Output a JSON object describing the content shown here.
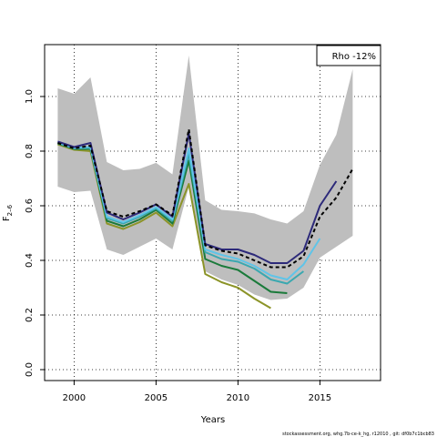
{
  "chart_data": {
    "type": "line",
    "xlabel": "Years",
    "ylabel": "F",
    "ylabel_sub": "2–6",
    "xlim": [
      1998.2,
      2018.7
    ],
    "ylim": [
      -0.04,
      1.19
    ],
    "x_ticks": [
      2000,
      2005,
      2010,
      2015
    ],
    "y_ticks": [
      0.0,
      0.2,
      0.4,
      0.6,
      0.8,
      1.0
    ],
    "x_tick_labels": [
      "2000",
      "2005",
      "2010",
      "2015"
    ],
    "y_tick_labels": [
      "0.0",
      "0.2",
      "0.4",
      "0.6",
      "0.8",
      "1.0"
    ],
    "grid": true,
    "legend": {
      "placement": "top-right",
      "text": "Rho -12%"
    },
    "footnote": "stockassessment.org, whg.7b-ce-k_hg, r12010 ,  git: df0b7c1bcb83",
    "band": {
      "color": "#bebebe",
      "years": [
        1999,
        2000,
        2001,
        2002,
        2003,
        2004,
        2005,
        2006,
        2007,
        2008,
        2009,
        2010,
        2011,
        2012,
        2013,
        2014,
        2015,
        2016,
        2017
      ],
      "upper": [
        1.03,
        1.01,
        1.07,
        0.76,
        0.73,
        0.735,
        0.757,
        0.715,
        1.15,
        0.62,
        0.585,
        0.58,
        0.572,
        0.55,
        0.535,
        0.58,
        0.75,
        0.86,
        1.1
      ],
      "lower": [
        0.67,
        0.65,
        0.655,
        0.44,
        0.42,
        0.45,
        0.48,
        0.44,
        0.67,
        0.36,
        0.33,
        0.31,
        0.275,
        0.255,
        0.26,
        0.3,
        0.41,
        0.45,
        0.49
      ]
    },
    "series": [
      {
        "color": "#8c9428",
        "dash": false,
        "years": [
          1999,
          2000,
          2001,
          2002,
          2003,
          2004,
          2005,
          2006,
          2007,
          2008,
          2009,
          2010,
          2011,
          2012
        ],
        "values": [
          0.825,
          0.805,
          0.8,
          0.535,
          0.515,
          0.54,
          0.575,
          0.525,
          0.68,
          0.35,
          0.32,
          0.3,
          0.26,
          0.225
        ]
      },
      {
        "color": "#1a7a3a",
        "dash": false,
        "years": [
          1999,
          2000,
          2001,
          2002,
          2003,
          2004,
          2005,
          2006,
          2007,
          2008,
          2009,
          2010,
          2011,
          2012,
          2013
        ],
        "values": [
          0.828,
          0.808,
          0.808,
          0.545,
          0.525,
          0.55,
          0.585,
          0.535,
          0.765,
          0.405,
          0.38,
          0.365,
          0.325,
          0.285,
          0.28
        ]
      },
      {
        "color": "#3aa8b0",
        "dash": false,
        "years": [
          1999,
          2000,
          2001,
          2002,
          2003,
          2004,
          2005,
          2006,
          2007,
          2008,
          2009,
          2010,
          2011,
          2012,
          2013,
          2014
        ],
        "values": [
          0.83,
          0.81,
          0.812,
          0.555,
          0.535,
          0.56,
          0.59,
          0.545,
          0.79,
          0.43,
          0.405,
          0.395,
          0.37,
          0.33,
          0.315,
          0.36
        ]
      },
      {
        "color": "#5fc4e8",
        "dash": false,
        "years": [
          1999,
          2000,
          2001,
          2002,
          2003,
          2004,
          2005,
          2006,
          2007,
          2008,
          2009,
          2010,
          2011,
          2012,
          2013,
          2014,
          2015
        ],
        "values": [
          0.832,
          0.812,
          0.815,
          0.56,
          0.54,
          0.565,
          0.595,
          0.55,
          0.81,
          0.44,
          0.42,
          0.405,
          0.38,
          0.345,
          0.33,
          0.385,
          0.48
        ]
      },
      {
        "color": "#2d2a7a",
        "dash": false,
        "years": [
          1999,
          2000,
          2001,
          2002,
          2003,
          2004,
          2005,
          2006,
          2007,
          2008,
          2009,
          2010,
          2011,
          2012,
          2013,
          2014,
          2015,
          2016
        ],
        "values": [
          0.835,
          0.815,
          0.83,
          0.575,
          0.55,
          0.575,
          0.605,
          0.56,
          0.865,
          0.46,
          0.44,
          0.44,
          0.42,
          0.39,
          0.39,
          0.435,
          0.6,
          0.69
        ]
      },
      {
        "color": "#000000",
        "dash": true,
        "years": [
          1999,
          2000,
          2001,
          2002,
          2003,
          2004,
          2005,
          2006,
          2007,
          2008,
          2009,
          2010,
          2011,
          2012,
          2013,
          2014,
          2015,
          2016,
          2017
        ],
        "values": [
          0.83,
          0.81,
          0.82,
          0.58,
          0.56,
          0.58,
          0.605,
          0.565,
          0.88,
          0.455,
          0.435,
          0.425,
          0.4,
          0.375,
          0.375,
          0.415,
          0.56,
          0.63,
          0.735
        ]
      }
    ]
  }
}
